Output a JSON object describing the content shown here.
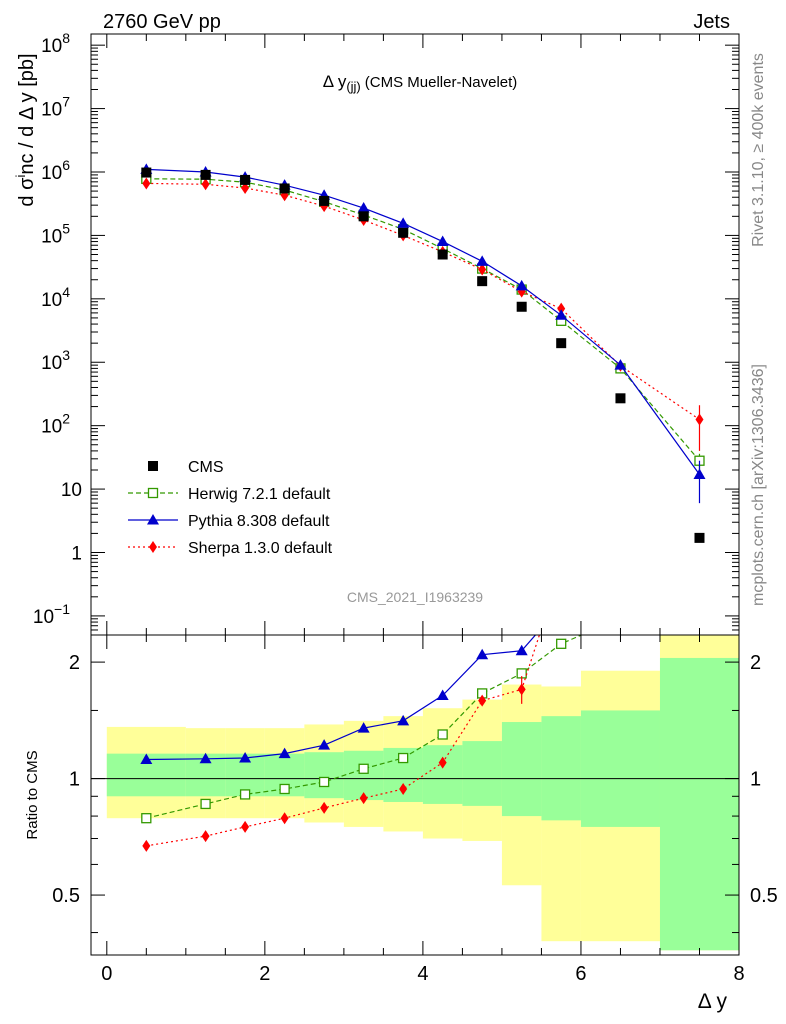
{
  "header": {
    "left": "2760 GeV pp",
    "right": "Jets"
  },
  "side_labels": {
    "rivet": "Rivet 3.1.10, ≥ 400k events",
    "mcplots": "mcplots.cern.ch [arXiv:1306.3436]"
  },
  "colors": {
    "data": "#000000",
    "herwig": "#339900",
    "pythia": "#0000cc",
    "sherpa": "#ff0000",
    "band_inner": "#99ff99",
    "band_outer": "#ffff99"
  },
  "chart_data": [
    {
      "type": "scatter",
      "title": "Δ y(jj) (CMS Mueller-Navelet)",
      "title_main": "Δ y",
      "title_sub": "(jj)",
      "title_rest": "(CMS Mueller-Navelet)",
      "ylabel": "d σinc / d Δ y [pb]",
      "ylabel_parts": {
        "pre": "d σ",
        "sup": "i",
        "post": "nc / d Δ y [pb]"
      },
      "watermark": "CMS_2021_I1963239",
      "ylim": [
        0.05,
        150000000
      ],
      "log_y": true,
      "xlim": [
        -0.2,
        8.0
      ],
      "y_ticks": [
        {
          "v": 0.1,
          "m": "10",
          "e": "−1"
        },
        {
          "v": 1,
          "m": "1",
          "e": ""
        },
        {
          "v": 10,
          "m": "10",
          "e": ""
        },
        {
          "v": 100,
          "m": "10",
          "e": "2"
        },
        {
          "v": 1000,
          "m": "10",
          "e": "3"
        },
        {
          "v": 10000,
          "m": "10",
          "e": "4"
        },
        {
          "v": 100000,
          "m": "10",
          "e": "5"
        },
        {
          "v": 1000000,
          "m": "10",
          "e": "6"
        },
        {
          "v": 10000000,
          "m": "10",
          "e": "7"
        },
        {
          "v": 100000000,
          "m": "10",
          "e": "8"
        }
      ],
      "legend_position": "bottom-left",
      "legend": [
        "CMS",
        "Herwig 7.2.1 default",
        "Pythia 8.308 default",
        "Sherpa 1.3.0 default"
      ],
      "series": [
        {
          "name": "CMS",
          "style": "data",
          "x": [
            0.5,
            1.25,
            1.75,
            2.25,
            2.75,
            3.25,
            3.75,
            4.25,
            4.75,
            5.25,
            5.75,
            6.5,
            7.5
          ],
          "y": [
            980000,
            900000,
            750000,
            550000,
            350000,
            200000,
            110000,
            50000,
            19000,
            7500,
            2000,
            270,
            1.7
          ]
        },
        {
          "name": "Herwig 7.2.1 default",
          "style": "herwig",
          "x": [
            0.5,
            1.25,
            1.75,
            2.25,
            2.75,
            3.25,
            3.75,
            4.25,
            4.75,
            5.25,
            5.75,
            6.5,
            7.5
          ],
          "y": [
            780000,
            770000,
            690000,
            520000,
            340000,
            210000,
            125000,
            62000,
            30000,
            14000,
            4500,
            800,
            28
          ],
          "err": [
            0,
            0,
            0,
            0,
            0,
            0,
            0,
            0,
            0,
            0,
            0,
            0,
            8
          ]
        },
        {
          "name": "Pythia 8.308 default",
          "style": "pythia",
          "x": [
            0.5,
            1.25,
            1.75,
            2.25,
            2.75,
            3.25,
            3.75,
            4.25,
            4.75,
            5.25,
            5.75,
            6.5,
            7.5
          ],
          "y": [
            1100000,
            1000000,
            830000,
            620000,
            430000,
            270000,
            155000,
            80000,
            39000,
            16000,
            5500,
            900,
            17
          ],
          "err": [
            0,
            0,
            0,
            0,
            0,
            0,
            0,
            0,
            0,
            0,
            0,
            0,
            11
          ]
        },
        {
          "name": "Sherpa 1.3.0 default",
          "style": "sherpa",
          "x": [
            0.5,
            1.25,
            1.75,
            2.25,
            2.75,
            3.25,
            3.75,
            4.25,
            4.75,
            5.25,
            5.75,
            6.5,
            7.5
          ],
          "y": [
            660000,
            640000,
            560000,
            430000,
            290000,
            175000,
            100000,
            55000,
            29000,
            13000,
            7000,
            880,
            125
          ],
          "err": [
            0,
            0,
            0,
            0,
            0,
            0,
            0,
            0,
            0,
            0,
            0,
            0,
            85
          ]
        }
      ]
    },
    {
      "type": "line",
      "ylabel": "Ratio to CMS",
      "xlabel": "Δ y",
      "xlim": [
        -0.2,
        8.0
      ],
      "ylim": [
        0.35,
        2.35
      ],
      "ratio_scale": "log",
      "x_ticks": [
        0,
        2,
        4,
        6,
        8
      ],
      "y_ticks": [
        0.5,
        1,
        2
      ],
      "y_tick_labels": [
        "0.5",
        "1",
        "2"
      ],
      "band_edges": [
        0,
        1,
        1.5,
        2,
        2.5,
        3,
        3.5,
        4,
        4.5,
        5,
        5.5,
        6,
        7,
        8
      ],
      "band_inner_lo": [
        0.9,
        0.9,
        0.9,
        0.9,
        0.89,
        0.88,
        0.87,
        0.86,
        0.85,
        0.8,
        0.78,
        0.75,
        0.36
      ],
      "band_inner_hi": [
        1.16,
        1.16,
        1.16,
        1.16,
        1.17,
        1.18,
        1.2,
        1.22,
        1.25,
        1.4,
        1.45,
        1.5,
        2.05
      ],
      "band_outer_lo": [
        0.79,
        0.79,
        0.79,
        0.79,
        0.77,
        0.75,
        0.73,
        0.7,
        0.69,
        0.53,
        0.38,
        0.38,
        0.36
      ],
      "band_outer_hi": [
        1.36,
        1.35,
        1.35,
        1.35,
        1.38,
        1.41,
        1.45,
        1.52,
        1.6,
        1.75,
        1.73,
        1.9,
        2.35
      ],
      "series": [
        {
          "name": "Herwig 7.2.1 default",
          "style": "herwig",
          "x": [
            0.5,
            1.25,
            1.75,
            2.25,
            2.75,
            3.25,
            3.75,
            4.25,
            4.75,
            5.25,
            5.75,
            6.5
          ],
          "y": [
            0.79,
            0.86,
            0.91,
            0.94,
            0.98,
            1.06,
            1.13,
            1.3,
            1.66,
            1.87,
            2.23,
            2.6
          ],
          "err": [
            0,
            0,
            0,
            0,
            0,
            0,
            0,
            0,
            0,
            0,
            0.05,
            0
          ]
        },
        {
          "name": "Pythia 8.308 default",
          "style": "pythia",
          "x": [
            0.5,
            1.25,
            1.75,
            2.25,
            2.75,
            3.25,
            3.75,
            4.25,
            4.75,
            5.25,
            5.75
          ],
          "y": [
            1.12,
            1.125,
            1.13,
            1.16,
            1.22,
            1.35,
            1.41,
            1.64,
            2.09,
            2.14,
            2.8
          ],
          "err": [
            0,
            0,
            0,
            0,
            0,
            0,
            0,
            0,
            0,
            0.05,
            0
          ]
        },
        {
          "name": "Sherpa 1.3.0 default",
          "style": "sherpa",
          "x": [
            0.5,
            1.25,
            1.75,
            2.25,
            2.75,
            3.25,
            3.75,
            4.25,
            4.75,
            5.25,
            5.75
          ],
          "y": [
            0.67,
            0.71,
            0.75,
            0.79,
            0.84,
            0.89,
            0.94,
            1.1,
            1.59,
            1.7,
            3.5
          ],
          "err": [
            0,
            0,
            0,
            0,
            0,
            0,
            0,
            0,
            0,
            0.14,
            0
          ]
        }
      ]
    }
  ]
}
